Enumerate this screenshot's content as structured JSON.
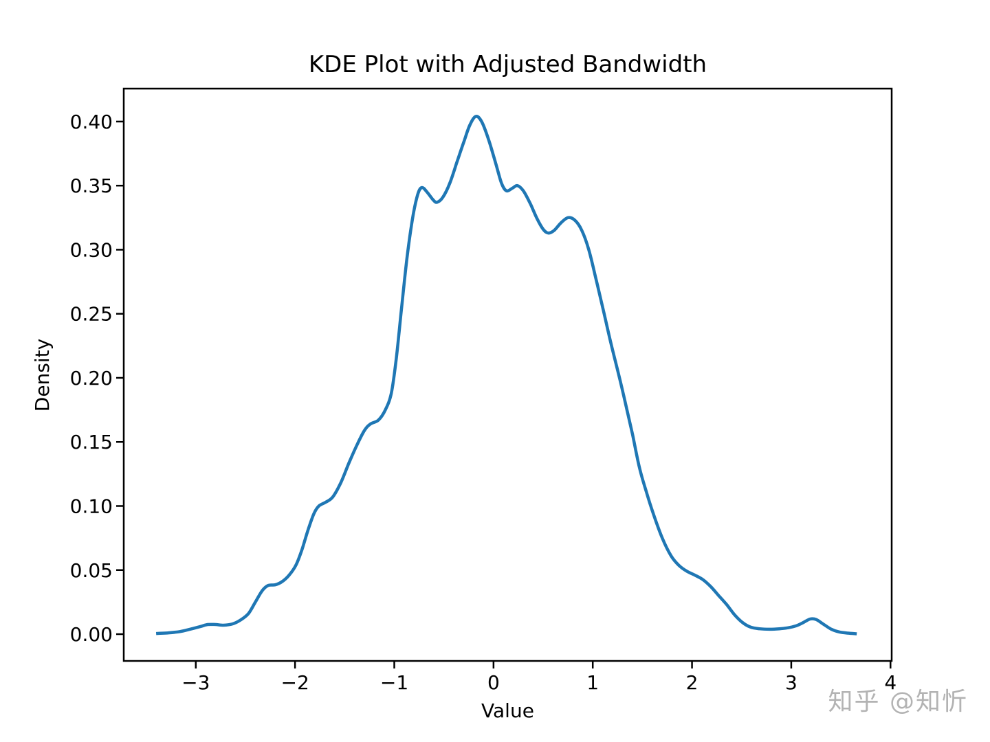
{
  "figure": {
    "background": "#ffffff",
    "watermark": {
      "text": "知乎 @知忻",
      "color": "#b3b3b3"
    }
  },
  "chart_data": {
    "type": "line",
    "subtype": "kde-density-curve",
    "title": "KDE Plot with Adjusted Bandwidth",
    "xlabel": "Value",
    "ylabel": "Density",
    "legend": null,
    "grid": false,
    "line_color": "#1f77b4",
    "line_width": 4.5,
    "axis_color": "#000000",
    "xlim": [
      -3.726,
      4.012
    ],
    "ylim": [
      -0.0209,
      0.4257
    ],
    "xtick_values": [
      -3,
      -2,
      -1,
      0,
      1,
      2,
      3,
      4
    ],
    "xtick_labels": [
      "−3",
      "−2",
      "−1",
      "0",
      "1",
      "2",
      "3",
      "4"
    ],
    "ytick_values": [
      0.0,
      0.05,
      0.1,
      0.15,
      0.2,
      0.25,
      0.3,
      0.35,
      0.4
    ],
    "ytick_labels": [
      "0.00",
      "0.05",
      "0.10",
      "0.15",
      "0.20",
      "0.25",
      "0.30",
      "0.35",
      "0.40"
    ],
    "points": [
      [
        -3.4,
        0.0005
      ],
      [
        -3.28,
        0.001
      ],
      [
        -3.16,
        0.002
      ],
      [
        -3.05,
        0.004
      ],
      [
        -2.95,
        0.006
      ],
      [
        -2.88,
        0.0075
      ],
      [
        -2.8,
        0.0075
      ],
      [
        -2.72,
        0.007
      ],
      [
        -2.63,
        0.008
      ],
      [
        -2.55,
        0.011
      ],
      [
        -2.47,
        0.016
      ],
      [
        -2.4,
        0.025
      ],
      [
        -2.33,
        0.034
      ],
      [
        -2.27,
        0.038
      ],
      [
        -2.2,
        0.0385
      ],
      [
        -2.13,
        0.041
      ],
      [
        -2.06,
        0.046
      ],
      [
        -1.99,
        0.054
      ],
      [
        -1.93,
        0.066
      ],
      [
        -1.87,
        0.081
      ],
      [
        -1.81,
        0.094
      ],
      [
        -1.76,
        0.1
      ],
      [
        -1.69,
        0.103
      ],
      [
        -1.62,
        0.107
      ],
      [
        -1.54,
        0.118
      ],
      [
        -1.46,
        0.133
      ],
      [
        -1.38,
        0.147
      ],
      [
        -1.3,
        0.159
      ],
      [
        -1.24,
        0.164
      ],
      [
        -1.16,
        0.167
      ],
      [
        -1.09,
        0.175
      ],
      [
        -1.03,
        0.188
      ],
      [
        -0.98,
        0.215
      ],
      [
        -0.93,
        0.252
      ],
      [
        -0.87,
        0.295
      ],
      [
        -0.81,
        0.327
      ],
      [
        -0.76,
        0.344
      ],
      [
        -0.72,
        0.3485
      ],
      [
        -0.67,
        0.345
      ],
      [
        -0.61,
        0.339
      ],
      [
        -0.57,
        0.337
      ],
      [
        -0.51,
        0.341
      ],
      [
        -0.44,
        0.352
      ],
      [
        -0.37,
        0.368
      ],
      [
        -0.3,
        0.384
      ],
      [
        -0.24,
        0.397
      ],
      [
        -0.18,
        0.404
      ],
      [
        -0.12,
        0.4
      ],
      [
        -0.05,
        0.386
      ],
      [
        0.02,
        0.368
      ],
      [
        0.08,
        0.352
      ],
      [
        0.13,
        0.346
      ],
      [
        0.19,
        0.348
      ],
      [
        0.24,
        0.35
      ],
      [
        0.3,
        0.346
      ],
      [
        0.37,
        0.336
      ],
      [
        0.44,
        0.324
      ],
      [
        0.5,
        0.316
      ],
      [
        0.55,
        0.313
      ],
      [
        0.61,
        0.315
      ],
      [
        0.68,
        0.321
      ],
      [
        0.75,
        0.325
      ],
      [
        0.82,
        0.323
      ],
      [
        0.89,
        0.315
      ],
      [
        0.96,
        0.3
      ],
      [
        1.03,
        0.278
      ],
      [
        1.1,
        0.255
      ],
      [
        1.18,
        0.228
      ],
      [
        1.26,
        0.203
      ],
      [
        1.33,
        0.18
      ],
      [
        1.4,
        0.156
      ],
      [
        1.47,
        0.13
      ],
      [
        1.54,
        0.111
      ],
      [
        1.61,
        0.094
      ],
      [
        1.7,
        0.075
      ],
      [
        1.79,
        0.061
      ],
      [
        1.87,
        0.0535
      ],
      [
        1.95,
        0.049
      ],
      [
        2.03,
        0.046
      ],
      [
        2.11,
        0.0425
      ],
      [
        2.19,
        0.037
      ],
      [
        2.27,
        0.03
      ],
      [
        2.35,
        0.023
      ],
      [
        2.43,
        0.015
      ],
      [
        2.51,
        0.009
      ],
      [
        2.59,
        0.0055
      ],
      [
        2.68,
        0.0042
      ],
      [
        2.78,
        0.0038
      ],
      [
        2.88,
        0.0042
      ],
      [
        2.97,
        0.005
      ],
      [
        3.05,
        0.0065
      ],
      [
        3.12,
        0.009
      ],
      [
        3.19,
        0.0118
      ],
      [
        3.25,
        0.0115
      ],
      [
        3.32,
        0.008
      ],
      [
        3.4,
        0.004
      ],
      [
        3.48,
        0.0018
      ],
      [
        3.57,
        0.0008
      ],
      [
        3.66,
        0.0003
      ]
    ]
  }
}
